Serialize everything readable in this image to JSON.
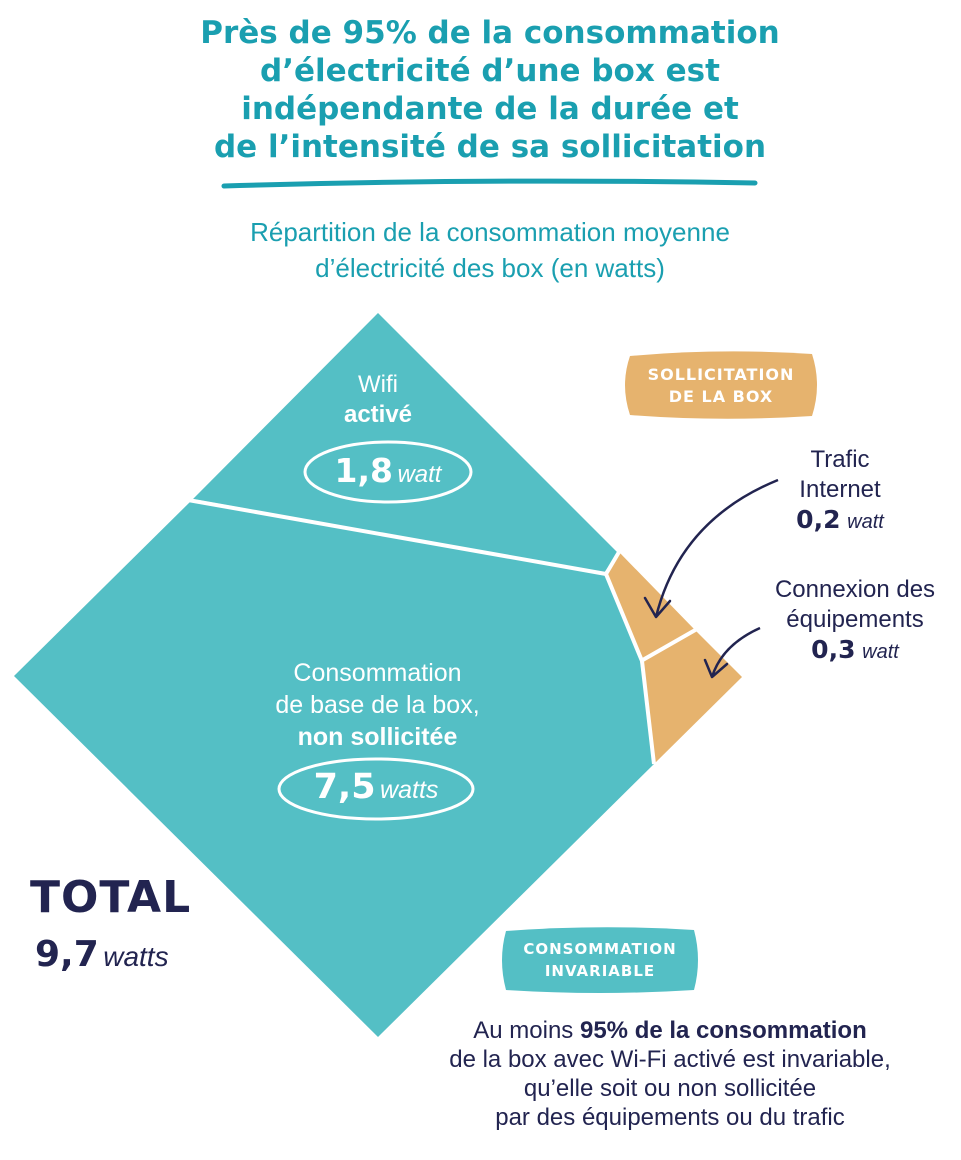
{
  "title": {
    "line1": "Près de 95% de la consommation",
    "line2": "d’électricité d’une box est",
    "line3": "indépendante de la durée et",
    "line4": "de l’intensité de sa sollicitation"
  },
  "subtitle": {
    "line1": "Répartition de la consommation moyenne",
    "line2": "d’électricité des box (en watts)"
  },
  "segments": {
    "wifi": {
      "label1": "Wifi",
      "label2": "activé",
      "value": "1,8",
      "unit": "watt"
    },
    "base": {
      "label1": "Consommation",
      "label2": "de base de la box,",
      "label3": "non sollicitée",
      "value": "7,5",
      "unit": "watts"
    },
    "trafic": {
      "label1": "Trafic",
      "label2": "Internet",
      "value": "0,2",
      "unit": "watt"
    },
    "connexion": {
      "label1": "Connexion des",
      "label2": "équipements",
      "value": "0,3",
      "unit": "watt"
    }
  },
  "badges": {
    "sollicitation": {
      "line1": "SOLLICITATION",
      "line2": "DE LA BOX"
    },
    "invariable": {
      "line1": "CONSOMMATION",
      "line2": "INVARIABLE"
    }
  },
  "total": {
    "label": "TOTAL",
    "value": "9,7",
    "unit": "watts"
  },
  "note": {
    "pre": "Au moins ",
    "bold": "95% de la consommation",
    "line2": "de la box avec Wi-Fi activé est invariable,",
    "line3": "qu’elle soit ou non sollicitée",
    "line4": "par des équipements ou du trafic"
  },
  "colors": {
    "teal": "#54bfc5",
    "sand": "#e6b36e",
    "navy": "#222450",
    "title": "#1a9fb0"
  }
}
